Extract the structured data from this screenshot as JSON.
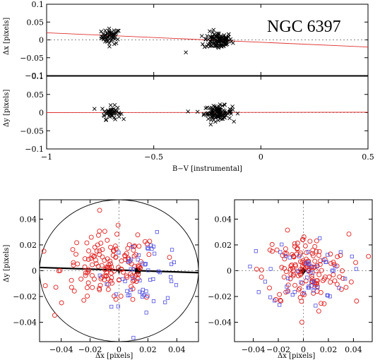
{
  "chart_data": [
    {
      "id": "top",
      "type": "scatter",
      "title": "NGC 6397",
      "xlabel": "B−V [instrumental]",
      "ylabel": "Δx [pixels]",
      "xlim": [
        -1,
        0.5
      ],
      "ylim": [
        -0.1,
        0.1
      ],
      "xticks": [
        "−1",
        "−0.5",
        "0",
        "0.5"
      ],
      "yticks": [
        "−0.1",
        "−0.05",
        "0",
        "0.05",
        "0.1"
      ],
      "fit_line": {
        "x": [
          -1,
          0.5
        ],
        "y": [
          0.02,
          -0.02
        ],
        "color": "#e03030"
      },
      "zero_line": true,
      "marker": "cross",
      "series": [
        {
          "cluster_center_x": -0.7,
          "cluster_center_y": 0.01,
          "spread_x": 0.04,
          "spread_y": 0.018,
          "n": 55
        },
        {
          "cluster_center_x": -0.2,
          "cluster_center_y": -0.002,
          "spread_x": 0.06,
          "spread_y": 0.02,
          "n": 110
        }
      ],
      "outliers": [
        {
          "x": -0.35,
          "y": -0.035
        }
      ]
    },
    {
      "id": "middle",
      "type": "scatter",
      "ylabel": "Δy [pixels]",
      "xlim": [
        -1,
        0.5
      ],
      "ylim": [
        -0.1,
        0.1
      ],
      "xticks": [
        "−1",
        "−0.5",
        "0",
        "0.5"
      ],
      "yticks": [
        "−0.1",
        "−0.05",
        "0",
        "0.05",
        "0.1"
      ],
      "fit_line": {
        "x": [
          -1,
          0.5
        ],
        "y": [
          0.0,
          0.001
        ],
        "color": "#e03030"
      },
      "zero_line": true,
      "marker": "cross",
      "series": [
        {
          "cluster_center_x": -0.7,
          "cluster_center_y": 0.0,
          "spread_x": 0.04,
          "spread_y": 0.015,
          "n": 50
        },
        {
          "cluster_center_x": -0.2,
          "cluster_center_y": 0.0,
          "spread_x": 0.06,
          "spread_y": 0.016,
          "n": 105
        }
      ],
      "outliers": [
        {
          "x": -0.34,
          "y": 0.003
        }
      ]
    },
    {
      "id": "bottom-left",
      "type": "scatter",
      "xlabel": "Δx [pixels]",
      "ylabel": "Δy [pixels]",
      "xlim": [
        -0.055,
        0.055
      ],
      "ylim": [
        -0.055,
        0.055
      ],
      "xticks": [
        "−0.04",
        "−0.02",
        "0",
        "0.02",
        "0.04"
      ],
      "yticks": [
        "−0.04",
        "−0.02",
        "0",
        "0.02",
        "0.04"
      ],
      "circle_radius": 0.055,
      "line": {
        "x": [
          -0.055,
          0.055
        ],
        "y": [
          0.0025,
          -0.0015
        ]
      },
      "marks": [
        {
          "shape": "square",
          "color": "#000000",
          "x": 0.013,
          "y": 0.0
        },
        {
          "shape": "plus",
          "color": "#000000",
          "x": 0.0,
          "y": 0.0
        }
      ],
      "series": [
        {
          "marker": "circle",
          "color": "#e02020",
          "center": [
            -0.006,
            0.001
          ],
          "spread": [
            0.017,
            0.014
          ],
          "n": 150
        },
        {
          "marker": "square",
          "color": "#5050e0",
          "center": [
            0.018,
            -0.001
          ],
          "spread": [
            0.014,
            0.013
          ],
          "n": 55
        }
      ]
    },
    {
      "id": "bottom-right",
      "type": "scatter",
      "xlabel": "Δx [pixels]",
      "xlim": [
        -0.055,
        0.055
      ],
      "ylim": [
        -0.055,
        0.055
      ],
      "xticks": [
        "−0.04",
        "−0.02",
        "0",
        "0.02",
        "0.04"
      ],
      "yticks": [
        "−0.04",
        "−0.02",
        "0",
        "0.02",
        "0.04"
      ],
      "marks": [
        {
          "shape": "star",
          "color": "#000000",
          "x": 0.0,
          "y": 0.0
        }
      ],
      "series": [
        {
          "marker": "circle",
          "color": "#e02020",
          "center": [
            0.002,
            0.0
          ],
          "spread": [
            0.017,
            0.014
          ],
          "n": 150
        },
        {
          "marker": "square",
          "color": "#5050e0",
          "center": [
            0.004,
            0.0
          ],
          "spread": [
            0.016,
            0.014
          ],
          "n": 55
        }
      ]
    }
  ]
}
